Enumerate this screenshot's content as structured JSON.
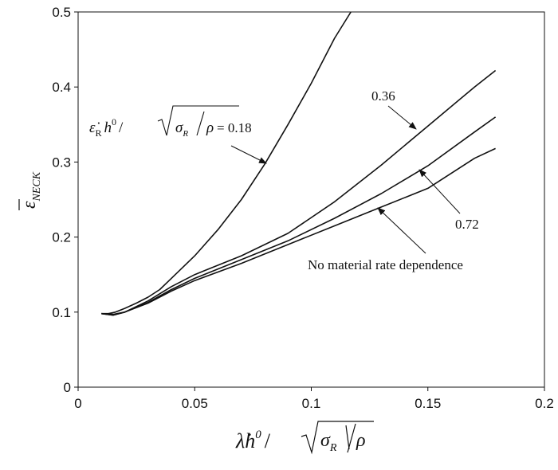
{
  "chart_data": {
    "type": "line",
    "title": "",
    "xlabel": "",
    "ylabel": "",
    "xlim": [
      0,
      0.2
    ],
    "ylim": [
      0,
      0.5
    ],
    "x_ticks": [
      0,
      0.05,
      0.1,
      0.15,
      0.2
    ],
    "x_tick_labels": [
      "0",
      "0.05",
      "0.1",
      "0.15",
      "0.2"
    ],
    "y_ticks": [
      0,
      0.1,
      0.2,
      0.3,
      0.4,
      0.5
    ],
    "y_tick_labels": [
      "0",
      "0.1",
      "0.2",
      "0.3",
      "0.4",
      "0.5"
    ],
    "grid": false,
    "legend": "none",
    "series": [
      {
        "name": "0.18",
        "x": [
          0.01,
          0.013,
          0.016,
          0.02,
          0.025,
          0.03,
          0.035,
          0.04,
          0.05,
          0.06,
          0.07,
          0.08,
          0.09,
          0.1,
          0.11,
          0.117
        ],
        "y": [
          0.098,
          0.098,
          0.1,
          0.105,
          0.112,
          0.12,
          0.13,
          0.145,
          0.175,
          0.21,
          0.25,
          0.297,
          0.35,
          0.405,
          0.465,
          0.5
        ]
      },
      {
        "name": "0.36",
        "x": [
          0.01,
          0.015,
          0.02,
          0.03,
          0.04,
          0.05,
          0.07,
          0.09,
          0.11,
          0.13,
          0.15,
          0.17,
          0.179
        ],
        "y": [
          0.098,
          0.096,
          0.1,
          0.115,
          0.134,
          0.15,
          0.175,
          0.205,
          0.247,
          0.296,
          0.348,
          0.4,
          0.422
        ]
      },
      {
        "name": "0.72",
        "x": [
          0.01,
          0.015,
          0.02,
          0.03,
          0.04,
          0.05,
          0.07,
          0.09,
          0.11,
          0.13,
          0.15,
          0.17,
          0.179
        ],
        "y": [
          0.098,
          0.096,
          0.1,
          0.113,
          0.13,
          0.145,
          0.17,
          0.195,
          0.225,
          0.258,
          0.295,
          0.34,
          0.36
        ]
      },
      {
        "name": "No material rate dependence",
        "x": [
          0.01,
          0.015,
          0.02,
          0.03,
          0.04,
          0.05,
          0.07,
          0.09,
          0.11,
          0.13,
          0.15,
          0.17,
          0.179
        ],
        "y": [
          0.098,
          0.097,
          0.1,
          0.112,
          0.128,
          0.142,
          0.165,
          0.19,
          0.215,
          0.24,
          0.265,
          0.305,
          0.318
        ]
      }
    ],
    "annotations": [
      {
        "text": "0.18",
        "prefix": "ε̇",
        "sub": "R",
        "h": "h",
        "sup": "0",
        "sigma": "σ",
        "sigma_sub": "R",
        "rho": "ρ",
        "eq": "= 0.18"
      },
      {
        "text": "0.36"
      },
      {
        "text": "0.72"
      },
      {
        "text": "No material rate dependence"
      }
    ],
    "ylabel_math": {
      "base": "ε",
      "sub": "NECK"
    },
    "xlabel_math": {
      "base": "λ̇h",
      "sup": "0",
      "sigma": "σ",
      "sigma_sub": "R",
      "rho": "ρ"
    }
  }
}
